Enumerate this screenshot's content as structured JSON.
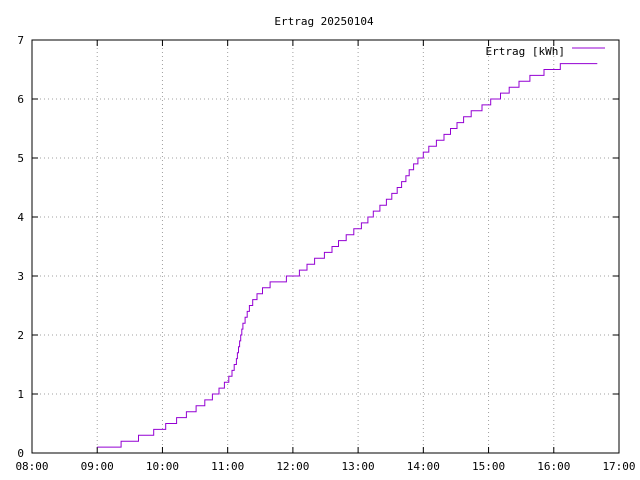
{
  "chart_data": {
    "type": "line",
    "title": "Ertrag 20250104",
    "xlabel": "",
    "ylabel": "",
    "x_axis": "time",
    "xlim": [
      "08:00",
      "17:00"
    ],
    "ylim": [
      0,
      7
    ],
    "x_ticks": [
      "08:00",
      "09:00",
      "10:00",
      "11:00",
      "12:00",
      "13:00",
      "14:00",
      "15:00",
      "16:00",
      "17:00"
    ],
    "y_ticks": [
      "0",
      "1",
      "2",
      "3",
      "4",
      "5",
      "6",
      "7"
    ],
    "grid": true,
    "legend_position": "top-right",
    "series": [
      {
        "name": "Ertrag [kWh]",
        "color": "#9400d3",
        "step": true,
        "points": [
          [
            "09:00",
            0.1
          ],
          [
            "09:22",
            0.2
          ],
          [
            "09:38",
            0.3
          ],
          [
            "09:52",
            0.4
          ],
          [
            "10:03",
            0.5
          ],
          [
            "10:13",
            0.6
          ],
          [
            "10:22",
            0.7
          ],
          [
            "10:31",
            0.8
          ],
          [
            "10:39",
            0.9
          ],
          [
            "10:46",
            1.0
          ],
          [
            "10:52",
            1.1
          ],
          [
            "10:57",
            1.2
          ],
          [
            "11:01",
            1.3
          ],
          [
            "11:04",
            1.4
          ],
          [
            "11:06",
            1.5
          ],
          [
            "11:08",
            1.6
          ],
          [
            "11:09",
            1.7
          ],
          [
            "11:10",
            1.8
          ],
          [
            "11:11",
            1.9
          ],
          [
            "11:12",
            2.0
          ],
          [
            "11:13",
            2.1
          ],
          [
            "11:14",
            2.2
          ],
          [
            "11:16",
            2.3
          ],
          [
            "11:18",
            2.4
          ],
          [
            "11:20",
            2.5
          ],
          [
            "11:23",
            2.6
          ],
          [
            "11:27",
            2.7
          ],
          [
            "11:32",
            2.8
          ],
          [
            "11:39",
            2.9
          ],
          [
            "11:54",
            3.0
          ],
          [
            "12:06",
            3.1
          ],
          [
            "12:13",
            3.2
          ],
          [
            "12:20",
            3.3
          ],
          [
            "12:29",
            3.4
          ],
          [
            "12:36",
            3.5
          ],
          [
            "12:42",
            3.6
          ],
          [
            "12:49",
            3.7
          ],
          [
            "12:56",
            3.8
          ],
          [
            "13:03",
            3.9
          ],
          [
            "13:09",
            4.0
          ],
          [
            "13:14",
            4.1
          ],
          [
            "13:20",
            4.2
          ],
          [
            "13:26",
            4.3
          ],
          [
            "13:31",
            4.4
          ],
          [
            "13:36",
            4.5
          ],
          [
            "13:40",
            4.6
          ],
          [
            "13:44",
            4.7
          ],
          [
            "13:47",
            4.8
          ],
          [
            "13:51",
            4.9
          ],
          [
            "13:55",
            5.0
          ],
          [
            "14:00",
            5.1
          ],
          [
            "14:05",
            5.2
          ],
          [
            "14:12",
            5.3
          ],
          [
            "14:19",
            5.4
          ],
          [
            "14:25",
            5.5
          ],
          [
            "14:31",
            5.6
          ],
          [
            "14:37",
            5.7
          ],
          [
            "14:44",
            5.8
          ],
          [
            "14:54",
            5.9
          ],
          [
            "15:02",
            6.0
          ],
          [
            "15:11",
            6.1
          ],
          [
            "15:19",
            6.2
          ],
          [
            "15:28",
            6.3
          ],
          [
            "15:38",
            6.4
          ],
          [
            "15:51",
            6.5
          ],
          [
            "16:06",
            6.6
          ],
          [
            "16:40",
            6.6
          ]
        ]
      }
    ]
  }
}
